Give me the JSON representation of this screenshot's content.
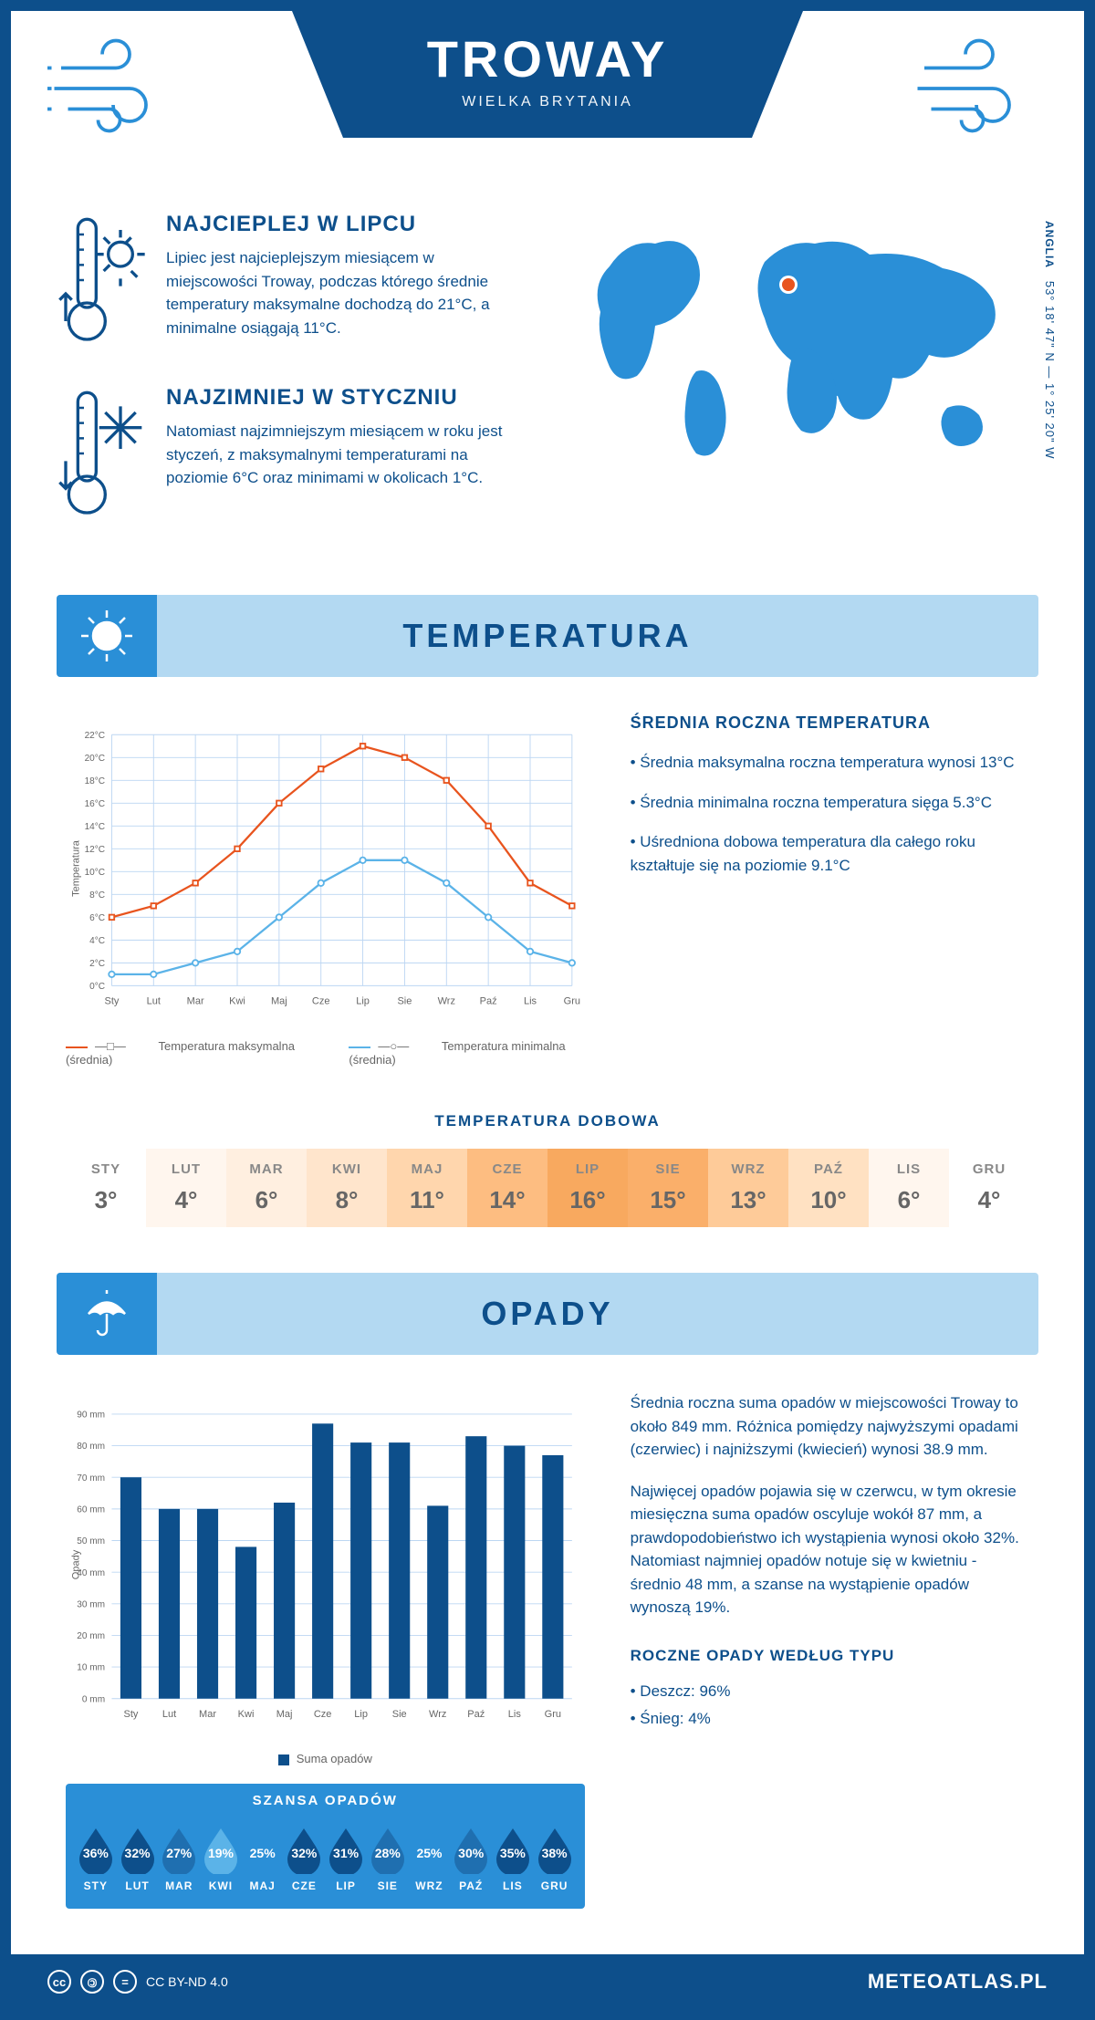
{
  "header": {
    "title": "TROWAY",
    "subtitle": "WIELKA BRYTANIA"
  },
  "coords": {
    "lat": "53° 18' 47\" N — 1° 25' 20\" W",
    "region": "ANGLIA"
  },
  "facts": {
    "hot": {
      "title": "NAJCIEPLEJ W LIPCU",
      "text": "Lipiec jest najcieplejszym miesiącem w miejscowości Troway, podczas którego średnie temperatury maksymalne dochodzą do 21°C, a minimalne osiągają 11°C."
    },
    "cold": {
      "title": "NAJZIMNIEJ W STYCZNIU",
      "text": "Natomiast najzimniejszym miesiącem w roku jest styczeń, z maksymalnymi temperaturami na poziomie 6°C oraz minimami w okolicach 1°C."
    }
  },
  "sections": {
    "temperature": "TEMPERATURA",
    "precipitation": "OPADY"
  },
  "temp_chart": {
    "type": "line",
    "months": [
      "Sty",
      "Lut",
      "Mar",
      "Kwi",
      "Maj",
      "Cze",
      "Lip",
      "Sie",
      "Wrz",
      "Paź",
      "Lis",
      "Gru"
    ],
    "max_series": [
      6,
      7,
      9,
      12,
      16,
      19,
      21,
      20,
      18,
      14,
      9,
      7
    ],
    "min_series": [
      1,
      1,
      2,
      3,
      6,
      9,
      11,
      11,
      9,
      6,
      3,
      2
    ],
    "ylim": [
      0,
      22
    ],
    "ytick_step": 2,
    "max_color": "#e8541e",
    "min_color": "#5bb3e8",
    "grid_color": "#bcd6f2",
    "axis_color": "#0d4f8b",
    "ylabel": "Temperatura",
    "legend_max": "Temperatura maksymalna (średnia)",
    "legend_min": "Temperatura minimalna (średnia)"
  },
  "temp_text": {
    "heading": "ŚREDNIA ROCZNA TEMPERATURA",
    "b1": "Średnia maksymalna roczna temperatura wynosi 13°C",
    "b2": "Średnia minimalna roczna temperatura sięga 5.3°C",
    "b3": "Uśredniona dobowa temperatura dla całego roku kształtuje się na poziomie 9.1°C"
  },
  "daily": {
    "title": "TEMPERATURA DOBOWA",
    "months": [
      "STY",
      "LUT",
      "MAR",
      "KWI",
      "MAJ",
      "CZE",
      "LIP",
      "SIE",
      "WRZ",
      "PAŹ",
      "LIS",
      "GRU"
    ],
    "values": [
      "3°",
      "4°",
      "6°",
      "8°",
      "11°",
      "14°",
      "16°",
      "15°",
      "13°",
      "10°",
      "6°",
      "4°"
    ],
    "colors": [
      "#ffffff",
      "#fff6ee",
      "#ffefe0",
      "#ffe5cc",
      "#ffd6ad",
      "#fdbd81",
      "#f8a95f",
      "#faaf6a",
      "#fecb99",
      "#ffe1c2",
      "#fff6ee",
      "#ffffff"
    ]
  },
  "bar_chart": {
    "type": "bar",
    "months": [
      "Sty",
      "Lut",
      "Mar",
      "Kwi",
      "Maj",
      "Cze",
      "Lip",
      "Sie",
      "Wrz",
      "Paź",
      "Lis",
      "Gru"
    ],
    "values": [
      70,
      60,
      60,
      48,
      62,
      87,
      81,
      81,
      61,
      83,
      80,
      77
    ],
    "ylim": [
      0,
      90
    ],
    "ytick_step": 10,
    "bar_color": "#0d4f8b",
    "grid_color": "#bcd6f2",
    "ylabel": "Opady",
    "legend": "Suma opadów"
  },
  "precip_text": {
    "p1": "Średnia roczna suma opadów w miejscowości Troway to około 849 mm. Różnica pomiędzy najwyższymi opadami (czerwiec) i najniższymi (kwiecień) wynosi 38.9 mm.",
    "p2": "Najwięcej opadów pojawia się w czerwcu, w tym okresie miesięczna suma opadów oscyluje wokół 87 mm, a prawdopodobieństwo ich wystąpienia wynosi około 32%. Natomiast najmniej opadów notuje się w kwietniu - średnio 48 mm, a szanse na wystąpienie opadów wynoszą 19%."
  },
  "chance": {
    "title": "SZANSA OPADÓW",
    "months": [
      "STY",
      "LUT",
      "MAR",
      "KWI",
      "MAJ",
      "CZE",
      "LIP",
      "SIE",
      "WRZ",
      "PAŹ",
      "LIS",
      "GRU"
    ],
    "values": [
      36,
      32,
      27,
      19,
      25,
      32,
      31,
      28,
      25,
      30,
      35,
      38
    ],
    "drop_colors": [
      "#0d4f8b",
      "#0d4f8b",
      "#1f6fb0",
      "#5bb3e8",
      "#2a8fd7",
      "#0d4f8b",
      "#0d4f8b",
      "#1f6fb0",
      "#2a8fd7",
      "#1f6fb0",
      "#0d4f8b",
      "#0d4f8b"
    ],
    "scale_min": 19,
    "scale_max": 38
  },
  "precip_type": {
    "heading": "ROCZNE OPADY WEDŁUG TYPU",
    "rain": "Deszcz: 96%",
    "snow": "Śnieg: 4%"
  },
  "footer": {
    "license": "CC BY-ND 4.0",
    "brand": "METEOATLAS.PL"
  },
  "colors": {
    "primary": "#0d4f8b",
    "light": "#b3d9f2",
    "accent": "#2a8fd7"
  }
}
